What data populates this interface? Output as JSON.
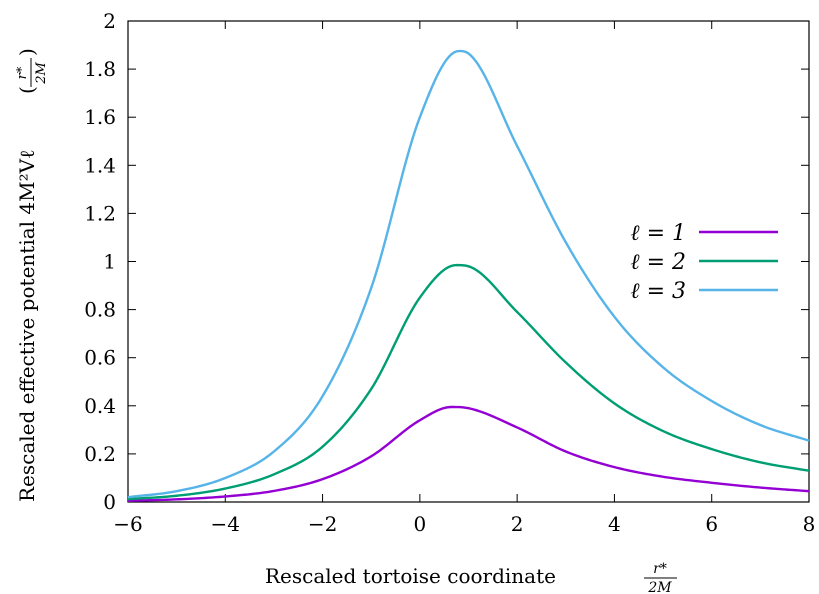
{
  "chart_data": {
    "type": "line",
    "xlabel": "Rescaled tortoise coordinate",
    "xlabel_fraction": {
      "num": "r*",
      "den": "2M"
    },
    "ylabel": "Rescaled effective potential 4M²Vℓ",
    "ylabel_fraction": {
      "num": "r*",
      "den": "2M"
    },
    "xlim": [
      -6,
      8
    ],
    "ylim": [
      0,
      2
    ],
    "x_ticks": [
      "−6",
      "−4",
      "−2",
      "0",
      "2",
      "4",
      "6",
      "8"
    ],
    "x_tick_values": [
      -6,
      -4,
      -2,
      0,
      2,
      4,
      6,
      8
    ],
    "y_ticks": [
      "0",
      "0.2",
      "0.4",
      "0.6",
      "0.8",
      "1",
      "1.2",
      "1.4",
      "1.6",
      "1.8",
      "2"
    ],
    "y_tick_values": [
      0,
      0.2,
      0.4,
      0.6,
      0.8,
      1.0,
      1.2,
      1.4,
      1.6,
      1.8,
      2.0
    ],
    "grid": false,
    "legend_position": "right",
    "series": [
      {
        "name": "ℓ = 1",
        "color": "#9400d3",
        "x": [
          -6,
          -5,
          -4,
          -3,
          -2,
          -1,
          0,
          0.65,
          1,
          2,
          3,
          4,
          5,
          6,
          7,
          8
        ],
        "y": [
          0.005,
          0.011,
          0.023,
          0.046,
          0.095,
          0.19,
          0.34,
          0.395,
          0.39,
          0.31,
          0.21,
          0.145,
          0.105,
          0.08,
          0.06,
          0.045
        ]
      },
      {
        "name": "ℓ = 2",
        "color": "#009e73",
        "x": [
          -6,
          -5,
          -4,
          -3,
          -2,
          -1,
          0,
          0.75,
          1,
          2,
          3,
          4,
          5,
          6,
          7,
          8
        ],
        "y": [
          0.012,
          0.026,
          0.056,
          0.115,
          0.23,
          0.47,
          0.85,
          0.985,
          0.98,
          0.79,
          0.58,
          0.41,
          0.295,
          0.22,
          0.165,
          0.13
        ]
      },
      {
        "name": "ℓ = 3",
        "color": "#56b4e9",
        "x": [
          -6,
          -5,
          -4,
          -3,
          -2,
          -1,
          0,
          0.8,
          1,
          2,
          3,
          4,
          5,
          6,
          7,
          8
        ],
        "y": [
          0.02,
          0.045,
          0.1,
          0.21,
          0.44,
          0.89,
          1.6,
          1.875,
          1.865,
          1.48,
          1.08,
          0.77,
          0.56,
          0.42,
          0.32,
          0.255
        ]
      }
    ]
  }
}
